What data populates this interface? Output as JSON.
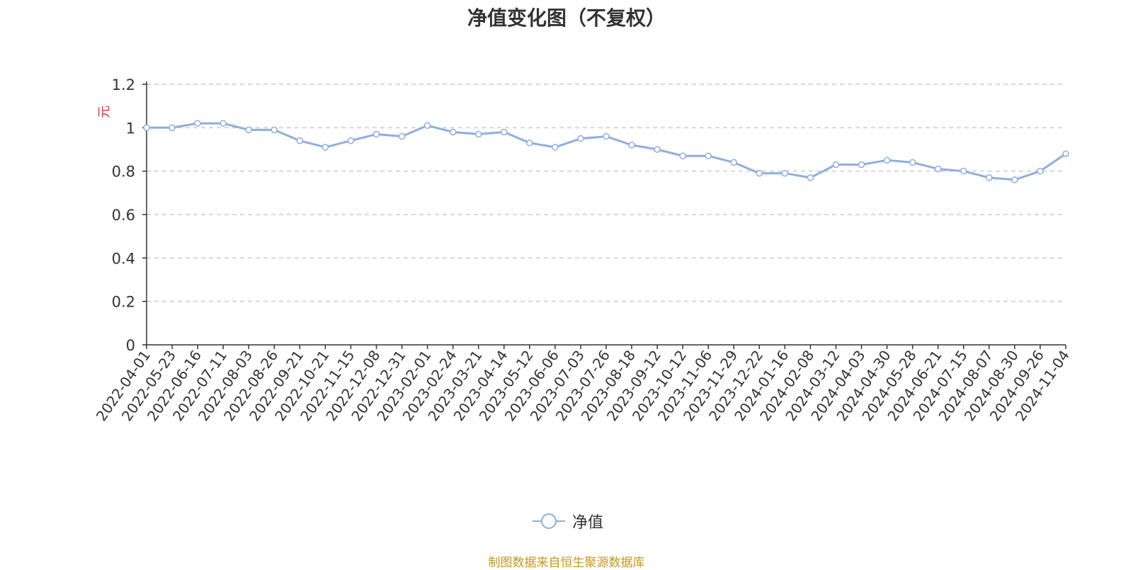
{
  "title": "净值变化图（不复权）",
  "source_note": "制图数据来自恒生聚源数据库",
  "colors": {
    "line": "#8eaee0",
    "title": "#333333",
    "grid": "#cccccc",
    "axis": "#333333",
    "unit": "#e03030",
    "source": "#c8961e"
  },
  "chart_data": {
    "type": "line",
    "title": "净值变化图（不复权）",
    "ylabel": "元",
    "xlabel": "",
    "ylim": [
      0,
      1.2
    ],
    "y_ticks": [
      "0",
      "0.2",
      "0.4",
      "0.6",
      "0.8",
      "1",
      "1.2"
    ],
    "y_tick_values": [
      0,
      0.2,
      0.4,
      0.6,
      0.8,
      1,
      1.2
    ],
    "grid": true,
    "legend_position": "bottom-center",
    "categories": [
      "2022-04-01",
      "2022-05-23",
      "2022-06-16",
      "2022-07-11",
      "2022-08-03",
      "2022-08-26",
      "2022-09-21",
      "2022-10-21",
      "2022-11-15",
      "2022-12-08",
      "2022-12-31",
      "2023-02-01",
      "2023-02-24",
      "2023-03-21",
      "2023-04-14",
      "2023-05-12",
      "2023-06-06",
      "2023-07-03",
      "2023-07-26",
      "2023-08-18",
      "2023-09-12",
      "2023-10-12",
      "2023-11-06",
      "2023-11-29",
      "2023-12-22",
      "2024-01-16",
      "2024-02-08",
      "2024-03-12",
      "2024-04-03",
      "2024-04-30",
      "2024-05-28",
      "2024-06-21",
      "2024-07-15",
      "2024-08-07",
      "2024-08-30",
      "2024-09-26",
      "2024-11-04"
    ],
    "series": [
      {
        "name": "净值",
        "values": [
          1.0,
          1.0,
          1.02,
          1.02,
          0.99,
          0.99,
          0.94,
          0.91,
          0.94,
          0.97,
          0.96,
          1.01,
          0.98,
          0.97,
          0.98,
          0.93,
          0.91,
          0.95,
          0.96,
          0.92,
          0.9,
          0.87,
          0.87,
          0.84,
          0.79,
          0.79,
          0.77,
          0.83,
          0.83,
          0.85,
          0.84,
          0.81,
          0.8,
          0.77,
          0.76,
          0.8,
          0.88
        ]
      }
    ]
  },
  "legend": {
    "label": "净值"
  }
}
